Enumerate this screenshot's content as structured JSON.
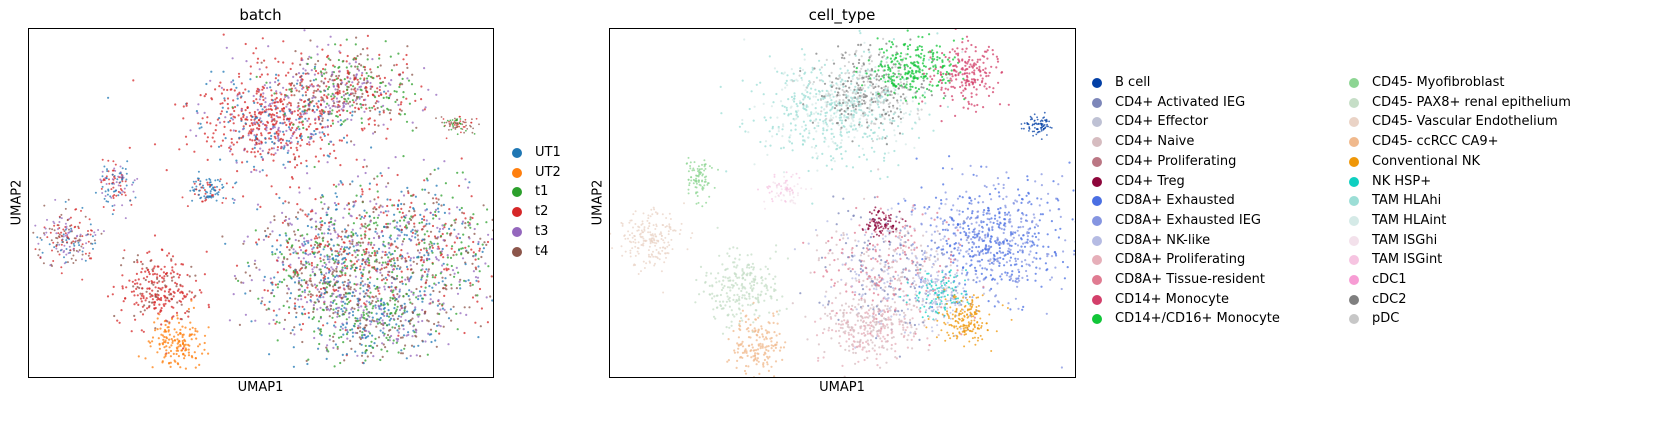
{
  "chart_data": [
    {
      "type": "scatter",
      "title": "batch",
      "xlabel": "UMAP1",
      "ylabel": "UMAP2",
      "ticks": "none",
      "legend_placement": "right",
      "legend": [
        {
          "name": "UT1",
          "color": "#1f77b4"
        },
        {
          "name": "UT2",
          "color": "#ff7f0e"
        },
        {
          "name": "t1",
          "color": "#2ca02c"
        },
        {
          "name": "t2",
          "color": "#d62728"
        },
        {
          "name": "t3",
          "color": "#9467bd"
        },
        {
          "name": "t4",
          "color": "#8c564b"
        }
      ]
    },
    {
      "type": "scatter",
      "title": "cell_type",
      "xlabel": "UMAP1",
      "ylabel": "UMAP2",
      "ticks": "none",
      "legend_placement": "right, two columns",
      "legend": [
        {
          "name": "B cell",
          "color": "#023fa5"
        },
        {
          "name": "CD4+ Activated IEG",
          "color": "#7d87b9"
        },
        {
          "name": "CD4+ Effector",
          "color": "#bec1d4"
        },
        {
          "name": "CD4+ Naive",
          "color": "#d6bcc0"
        },
        {
          "name": "CD4+ Proliferating",
          "color": "#bb7784"
        },
        {
          "name": "CD4+ Treg",
          "color": "#8e063b"
        },
        {
          "name": "CD8A+ Exhausted",
          "color": "#4a6fe3"
        },
        {
          "name": "CD8A+ Exhausted IEG",
          "color": "#8595e1"
        },
        {
          "name": "CD8A+ NK-like",
          "color": "#b5bbe3"
        },
        {
          "name": "CD8A+ Proliferating",
          "color": "#e6afb9"
        },
        {
          "name": "CD8A+ Tissue-resident",
          "color": "#e07b91"
        },
        {
          "name": "CD14+ Monocyte",
          "color": "#d33f6a"
        },
        {
          "name": "CD14+/CD16+ Monocyte",
          "color": "#11c638"
        },
        {
          "name": "CD45- Myofibroblast",
          "color": "#8dd593"
        },
        {
          "name": "CD45- PAX8+ renal epithelium",
          "color": "#c6dec7"
        },
        {
          "name": "CD45- Vascular Endothelium",
          "color": "#ead3c6"
        },
        {
          "name": "CD45- ccRCC CA9+",
          "color": "#f0b98d"
        },
        {
          "name": "Conventional NK",
          "color": "#ef9708"
        },
        {
          "name": "NK HSP+",
          "color": "#0fcfc0"
        },
        {
          "name": "TAM HLAhi",
          "color": "#9cded6"
        },
        {
          "name": "TAM HLAint",
          "color": "#d5eae7"
        },
        {
          "name": "TAM ISGhi",
          "color": "#f3e1eb"
        },
        {
          "name": "TAM ISGint",
          "color": "#f6c4e1"
        },
        {
          "name": "cDC1",
          "color": "#f79cd4"
        },
        {
          "name": "cDC2",
          "color": "#7f7f7f"
        },
        {
          "name": "pDC",
          "color": "#c7c7c7"
        }
      ]
    }
  ]
}
